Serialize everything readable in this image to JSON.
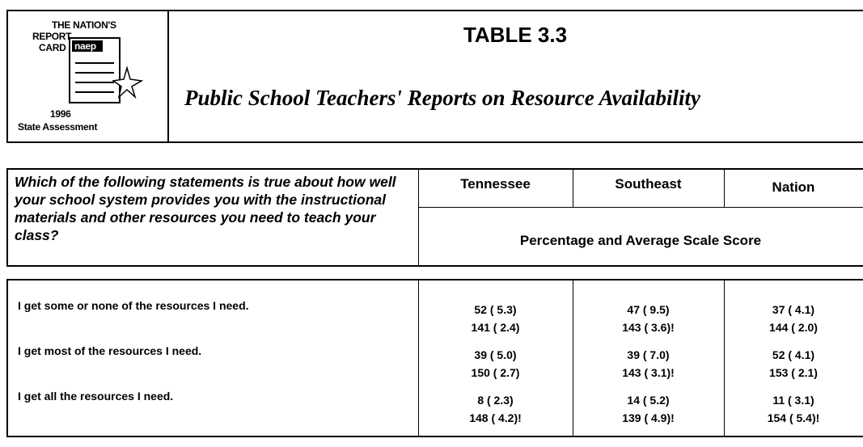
{
  "header": {
    "logo": {
      "line1": "THE NATION'S",
      "line2": "REPORT",
      "line3": "CARD",
      "badge": "naep",
      "year": "1996",
      "line4": "State Assessment"
    },
    "title": "TABLE 3.3",
    "subtitle": "Public School Teachers' Reports on Resource Availability"
  },
  "table": {
    "question": "Which of the following statements is true about how well your school system provides you with the instructional materials and other resources you need to teach your class?",
    "columns": [
      "Tennessee",
      "Southeast",
      "Nation"
    ],
    "subheader": "Percentage and Average Scale Score",
    "rows": [
      {
        "label": "I get some or none of the resources I need.",
        "cells": [
          [
            "52 ( 5.3)",
            "141 ( 2.4)"
          ],
          [
            "47 ( 9.5)",
            "143 ( 3.6)!"
          ],
          [
            "37 ( 4.1)",
            "144 ( 2.0)"
          ]
        ]
      },
      {
        "label": "I get most of the resources I need.",
        "cells": [
          [
            "39 ( 5.0)",
            "150 ( 2.7)"
          ],
          [
            "39 ( 7.0)",
            "143 ( 3.1)!"
          ],
          [
            "52 ( 4.1)",
            "153 ( 2.1)"
          ]
        ]
      },
      {
        "label": "I get all the resources I need.",
        "cells": [
          [
            "8 ( 2.3)",
            "148 ( 4.2)!"
          ],
          [
            "14 ( 5.2)",
            "139 ( 4.9)!"
          ],
          [
            "11 ( 3.1)",
            "154 ( 5.4)!"
          ]
        ]
      }
    ]
  }
}
